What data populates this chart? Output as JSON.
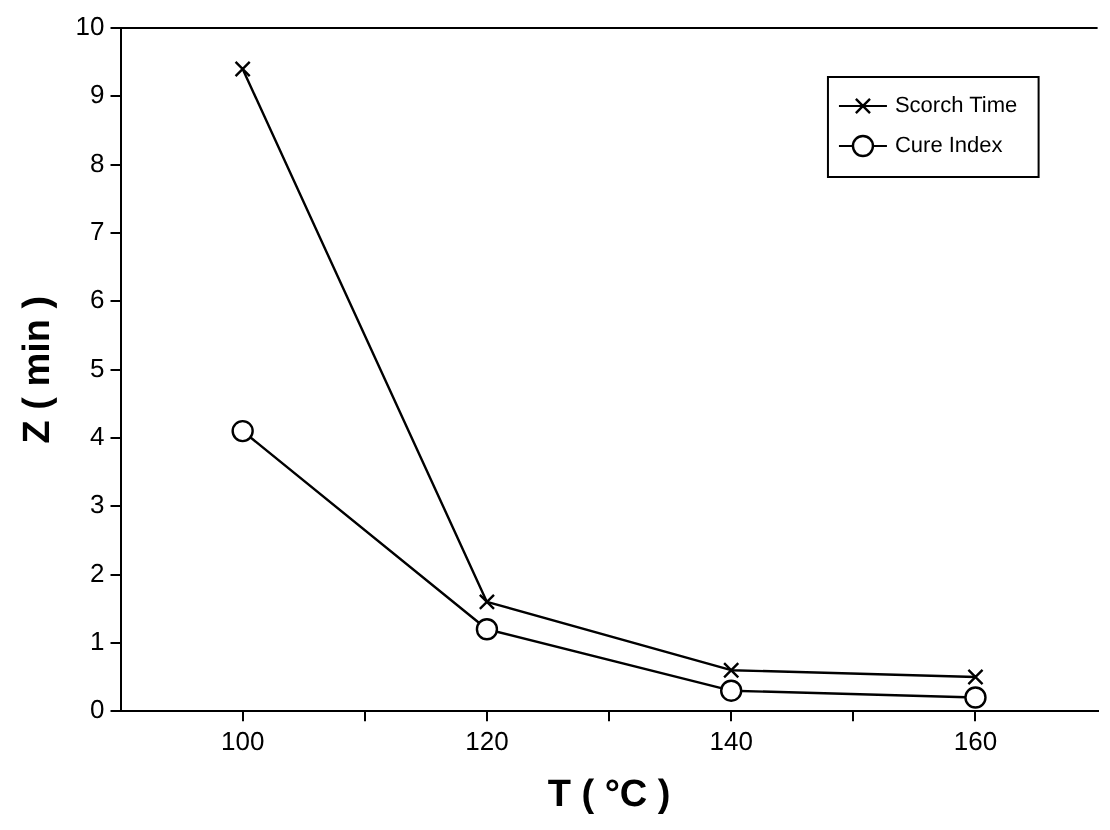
{
  "chart_data": {
    "type": "line",
    "xlabel": "T ( °C )",
    "ylabel": "Z ( min )",
    "x": [
      100,
      120,
      140,
      160
    ],
    "series": [
      {
        "name": "Scorch Time",
        "color": "#000000",
        "marker": "cross",
        "values": [
          9.4,
          1.6,
          0.6,
          0.5
        ]
      },
      {
        "name": "Cure Index",
        "color": "#000000",
        "marker": "circle",
        "values": [
          4.1,
          1.2,
          0.3,
          0.2
        ]
      }
    ],
    "xlim": [
      90,
      170
    ],
    "xticks": [
      100,
      {
        "value": 110,
        "label": null
      },
      120,
      {
        "value": 130,
        "label": null
      },
      140,
      {
        "value": 150,
        "label": null
      },
      160
    ],
    "ylim": [
      0,
      10
    ],
    "yticks": [
      0,
      1,
      2,
      3,
      4,
      5,
      6,
      7,
      8,
      9,
      10
    ],
    "grid": false,
    "legend": "top right",
    "line_style": "solid"
  }
}
